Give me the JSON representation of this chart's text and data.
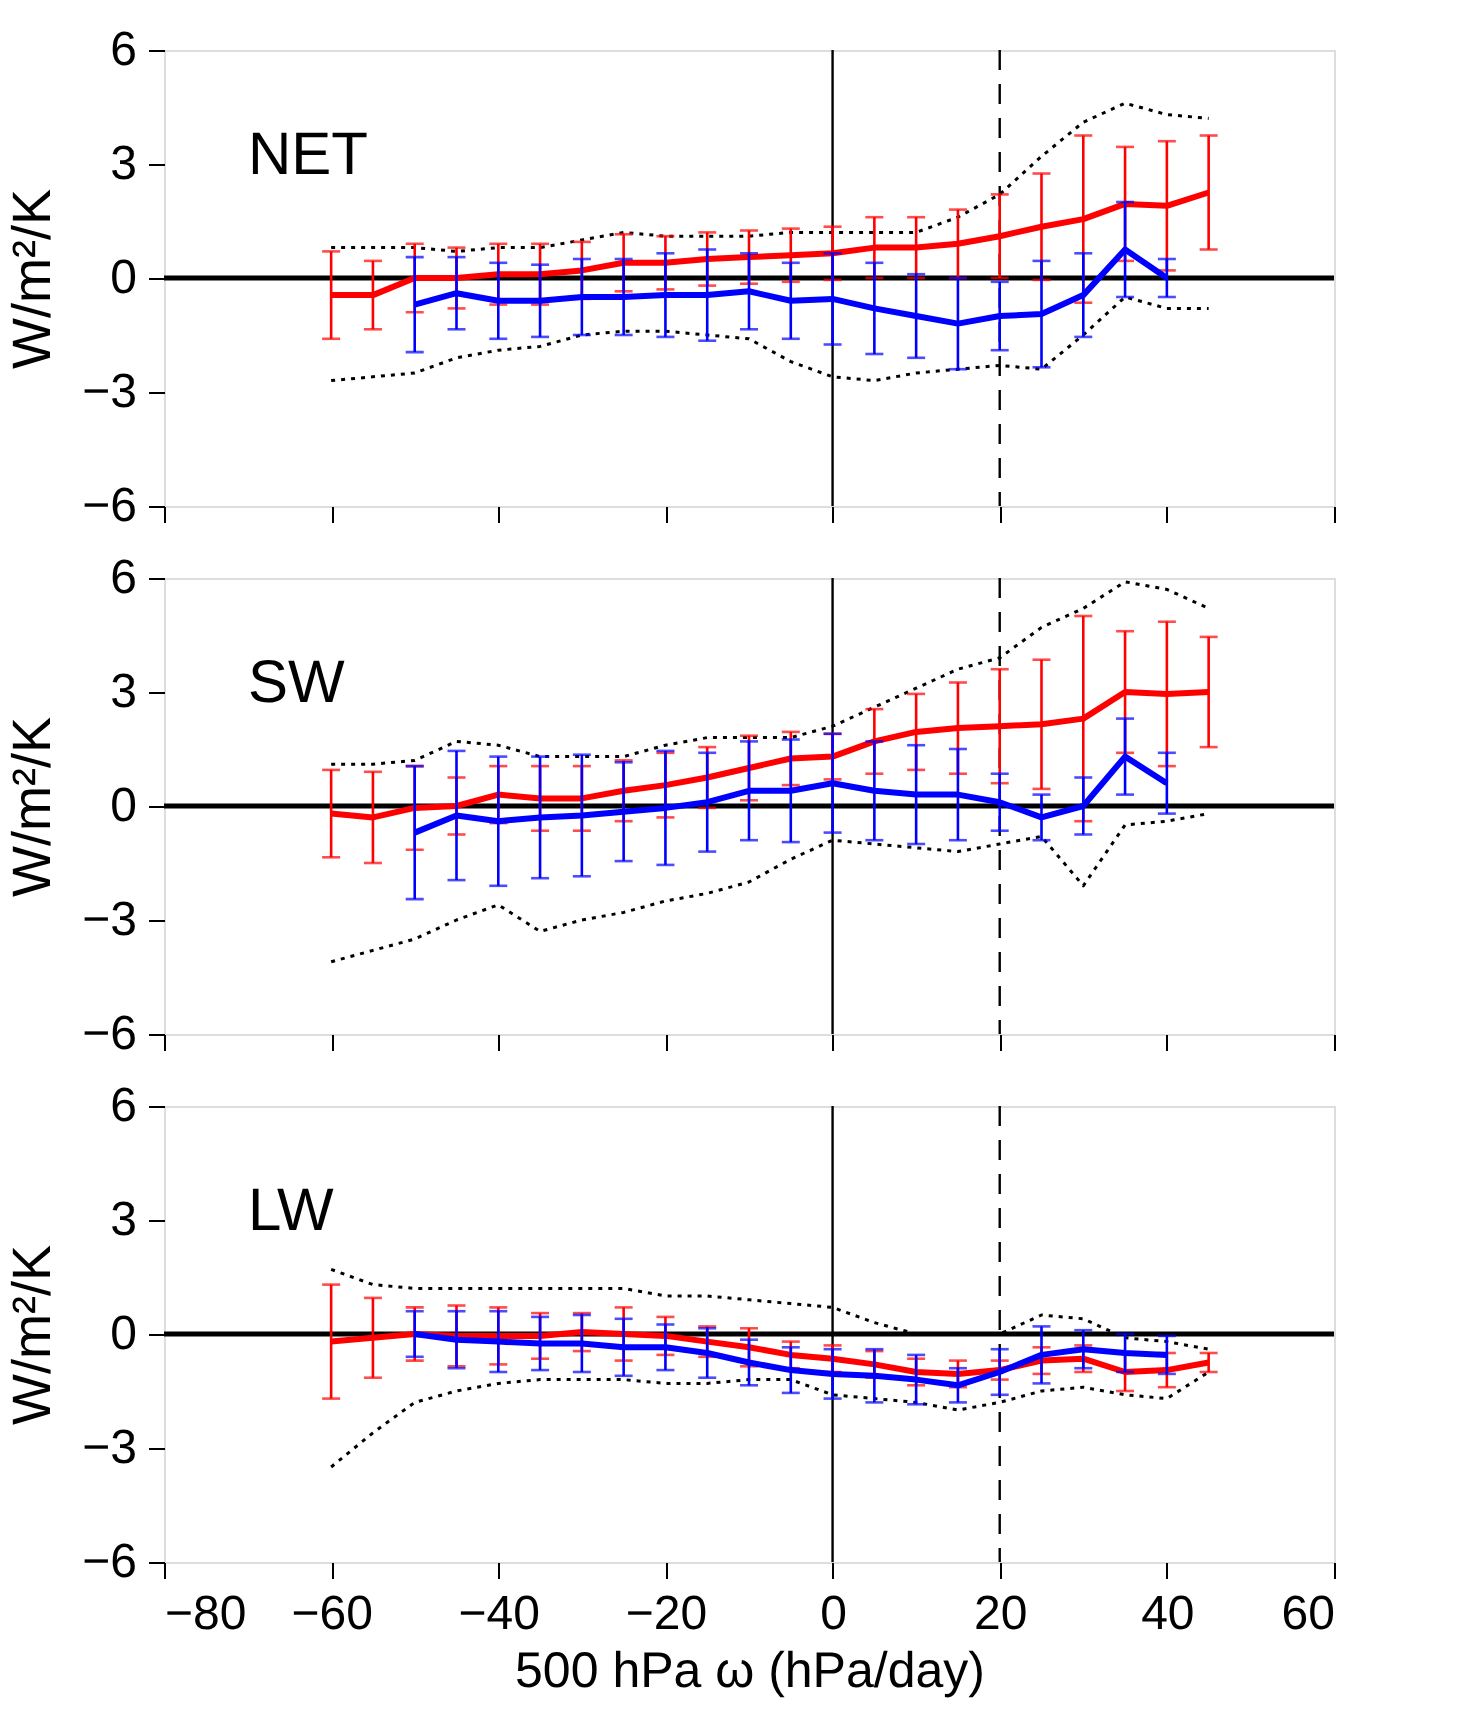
{
  "chart_data": [
    {
      "type": "line",
      "ylabel": "W/m²/K",
      "annotations": [
        "NET"
      ],
      "xlim": [
        -80,
        60
      ],
      "xticks": [
        -80,
        -60,
        -40,
        -20,
        0,
        20,
        40,
        60
      ],
      "ylim": [
        -6,
        6
      ],
      "yticks": [
        -6,
        -3,
        0,
        3,
        6
      ],
      "tick_labels": "y",
      "grid": false,
      "ref_lines": [
        {
          "axis": "y",
          "value": 0,
          "color": "#000000",
          "line_style": "solid"
        },
        {
          "axis": "x",
          "value": 0,
          "color": "#000000",
          "line_style": "solid"
        },
        {
          "axis": "x",
          "value": 20,
          "color": "#000000",
          "line_style": "dashed"
        }
      ],
      "series": [
        {
          "color": "#000000",
          "line_style": "dotted",
          "x": [
            -60,
            -55,
            -50,
            -45,
            -40,
            -35,
            -30,
            -25,
            -20,
            -15,
            -10,
            -5,
            0,
            5,
            10,
            15,
            20,
            25,
            30,
            35,
            40,
            45
          ],
          "values": [
            0.8,
            0.8,
            0.8,
            0.7,
            0.8,
            0.8,
            1.0,
            1.2,
            1.1,
            1.1,
            1.1,
            1.2,
            1.2,
            1.2,
            1.2,
            1.6,
            2.2,
            3.2,
            4.1,
            4.6,
            4.3,
            4.2
          ]
        },
        {
          "color": "#000000",
          "line_style": "dotted",
          "x": [
            -60,
            -55,
            -50,
            -45,
            -40,
            -35,
            -30,
            -25,
            -20,
            -15,
            -10,
            -5,
            0,
            5,
            10,
            15,
            20,
            25,
            30,
            35,
            40,
            45
          ],
          "values": [
            -2.7,
            -2.6,
            -2.5,
            -2.1,
            -1.9,
            -1.8,
            -1.5,
            -1.4,
            -1.4,
            -1.5,
            -1.6,
            -2.2,
            -2.6,
            -2.7,
            -2.5,
            -2.4,
            -2.3,
            -2.4,
            -1.5,
            -0.5,
            -0.8,
            -0.8
          ]
        },
        {
          "color": "#ff0000",
          "line_style": "solid",
          "x": [
            -60,
            -55,
            -50,
            -45,
            -40,
            -35,
            -30,
            -25,
            -20,
            -15,
            -10,
            -5,
            0,
            5,
            10,
            15,
            20,
            25,
            30,
            35,
            40,
            45
          ],
          "values": [
            -0.45,
            -0.45,
            0,
            0,
            0.1,
            0.1,
            0.2,
            0.4,
            0.4,
            0.5,
            0.55,
            0.6,
            0.65,
            0.8,
            0.8,
            0.9,
            1.1,
            1.35,
            1.55,
            1.95,
            1.9,
            2.25
          ],
          "errors": [
            1.15,
            0.9,
            0.9,
            0.8,
            0.8,
            0.8,
            0.75,
            0.75,
            0.7,
            0.7,
            0.7,
            0.7,
            0.7,
            0.8,
            0.8,
            0.9,
            1.1,
            1.4,
            2.2,
            1.5,
            1.7,
            1.5
          ]
        },
        {
          "color": "#0000ff",
          "line_style": "solid",
          "x": [
            -50,
            -45,
            -40,
            -35,
            -30,
            -25,
            -20,
            -15,
            -10,
            -5,
            0,
            5,
            10,
            15,
            20,
            25,
            30,
            35,
            40
          ],
          "values": [
            -0.7,
            -0.4,
            -0.6,
            -0.6,
            -0.5,
            -0.5,
            -0.45,
            -0.45,
            -0.35,
            -0.6,
            -0.55,
            -0.8,
            -1.0,
            -1.2,
            -1.0,
            -0.95,
            -0.45,
            0.75,
            0.0
          ],
          "errors": [
            1.25,
            0.95,
            1.0,
            0.95,
            1.0,
            1.0,
            1.1,
            1.2,
            1.0,
            1.0,
            1.2,
            1.2,
            1.1,
            1.2,
            0.9,
            1.4,
            1.1,
            1.25,
            0.5
          ]
        }
      ]
    },
    {
      "type": "line",
      "ylabel": "W/m²/K",
      "annotations": [
        "SW"
      ],
      "xlim": [
        -80,
        60
      ],
      "xticks": [
        -80,
        -60,
        -40,
        -20,
        0,
        20,
        40,
        60
      ],
      "ylim": [
        -6,
        6
      ],
      "yticks": [
        -6,
        -3,
        0,
        3,
        6
      ],
      "tick_labels": "y",
      "grid": false,
      "ref_lines": [
        {
          "axis": "y",
          "value": 0,
          "color": "#000000",
          "line_style": "solid"
        },
        {
          "axis": "x",
          "value": 0,
          "color": "#000000",
          "line_style": "solid"
        },
        {
          "axis": "x",
          "value": 20,
          "color": "#000000",
          "line_style": "dashed"
        }
      ],
      "series": [
        {
          "color": "#000000",
          "line_style": "dotted",
          "x": [
            -60,
            -55,
            -50,
            -45,
            -40,
            -35,
            -30,
            -25,
            -20,
            -15,
            -10,
            -5,
            0,
            5,
            10,
            15,
            20,
            25,
            30,
            35,
            40,
            45
          ],
          "values": [
            1.1,
            1.1,
            1.2,
            1.7,
            1.6,
            1.3,
            1.3,
            1.3,
            1.6,
            1.8,
            1.8,
            1.8,
            2.1,
            2.6,
            3.1,
            3.6,
            3.9,
            4.7,
            5.2,
            5.9,
            5.7,
            5.2
          ]
        },
        {
          "color": "#000000",
          "line_style": "dotted",
          "x": [
            -60,
            -55,
            -50,
            -45,
            -40,
            -35,
            -30,
            -25,
            -20,
            -15,
            -10,
            -5,
            0,
            5,
            10,
            15,
            20,
            25,
            30,
            35,
            40,
            45
          ],
          "values": [
            -4.1,
            -3.8,
            -3.5,
            -3.0,
            -2.6,
            -3.3,
            -3.0,
            -2.8,
            -2.5,
            -2.3,
            -2.0,
            -1.4,
            -0.9,
            -1.0,
            -1.1,
            -1.2,
            -1.0,
            -0.8,
            -2.1,
            -0.5,
            -0.4,
            -0.2
          ]
        },
        {
          "color": "#ff0000",
          "line_style": "solid",
          "x": [
            -60,
            -55,
            -50,
            -45,
            -40,
            -35,
            -30,
            -25,
            -20,
            -15,
            -10,
            -5,
            0,
            5,
            10,
            15,
            20,
            25,
            30,
            35,
            40,
            45
          ],
          "values": [
            -0.2,
            -0.3,
            -0.05,
            0,
            0.3,
            0.2,
            0.2,
            0.4,
            0.55,
            0.75,
            1.0,
            1.25,
            1.3,
            1.7,
            1.95,
            2.05,
            2.1,
            2.15,
            2.3,
            3.0,
            2.95,
            3.0
          ],
          "errors": [
            1.15,
            1.2,
            1.1,
            0.75,
            0.75,
            0.85,
            0.85,
            0.8,
            0.85,
            0.8,
            0.85,
            0.7,
            0.6,
            0.85,
            1.0,
            1.2,
            1.5,
            1.7,
            2.7,
            1.6,
            1.9,
            1.45
          ]
        },
        {
          "color": "#0000ff",
          "line_style": "solid",
          "x": [
            -50,
            -45,
            -40,
            -35,
            -30,
            -25,
            -20,
            -15,
            -10,
            -5,
            0,
            5,
            10,
            15,
            20,
            25,
            30,
            35,
            40
          ],
          "values": [
            -0.7,
            -0.25,
            -0.4,
            -0.3,
            -0.25,
            -0.15,
            -0.05,
            0.1,
            0.4,
            0.4,
            0.6,
            0.4,
            0.3,
            0.3,
            0.1,
            -0.3,
            0.0,
            1.3,
            0.6
          ],
          "errors": [
            1.75,
            1.7,
            1.7,
            1.6,
            1.6,
            1.3,
            1.5,
            1.3,
            1.3,
            1.35,
            1.3,
            1.3,
            1.3,
            1.2,
            0.75,
            0.6,
            0.75,
            1.0,
            0.8
          ]
        }
      ]
    },
    {
      "type": "line",
      "xlabel": "500 hPa ω (hPa/day)",
      "ylabel": "W/m²/K",
      "annotations": [
        "LW"
      ],
      "xlim": [
        -80,
        60
      ],
      "xticks": [
        -80,
        -60,
        -40,
        -20,
        0,
        20,
        40,
        60
      ],
      "ylim": [
        -6,
        6
      ],
      "yticks": [
        -6,
        -3,
        0,
        3,
        6
      ],
      "grid": false,
      "ref_lines": [
        {
          "axis": "y",
          "value": 0,
          "color": "#000000",
          "line_style": "solid"
        },
        {
          "axis": "x",
          "value": 0,
          "color": "#000000",
          "line_style": "solid"
        },
        {
          "axis": "x",
          "value": 20,
          "color": "#000000",
          "line_style": "dashed"
        }
      ],
      "series": [
        {
          "color": "#000000",
          "line_style": "dotted",
          "x": [
            -60,
            -55,
            -50,
            -45,
            -40,
            -35,
            -30,
            -25,
            -20,
            -15,
            -10,
            -5,
            0,
            5,
            10,
            15,
            20,
            25,
            30,
            35,
            40,
            45
          ],
          "values": [
            1.7,
            1.3,
            1.2,
            1.2,
            1.2,
            1.2,
            1.2,
            1.2,
            1.0,
            1.0,
            0.9,
            0.8,
            0.7,
            0.3,
            0.0,
            0.0,
            0.0,
            0.5,
            0.4,
            -0.1,
            -0.2,
            -0.4
          ]
        },
        {
          "color": "#000000",
          "line_style": "dotted",
          "x": [
            -60,
            -55,
            -50,
            -45,
            -40,
            -35,
            -30,
            -25,
            -20,
            -15,
            -10,
            -5,
            0,
            5,
            10,
            15,
            20,
            25,
            30,
            35,
            40,
            45
          ],
          "values": [
            -3.5,
            -2.6,
            -1.8,
            -1.5,
            -1.3,
            -1.2,
            -1.2,
            -1.2,
            -1.3,
            -1.3,
            -1.2,
            -1.2,
            -1.6,
            -1.7,
            -1.8,
            -2.0,
            -1.8,
            -1.5,
            -1.4,
            -1.6,
            -1.7,
            -1.0
          ]
        },
        {
          "color": "#ff0000",
          "line_style": "solid",
          "x": [
            -60,
            -55,
            -50,
            -45,
            -40,
            -35,
            -30,
            -25,
            -20,
            -15,
            -10,
            -5,
            0,
            5,
            10,
            15,
            20,
            25,
            30,
            35,
            40,
            45
          ],
          "values": [
            -0.2,
            -0.1,
            0,
            -0.05,
            -0.05,
            -0.05,
            0.05,
            0,
            -0.05,
            -0.2,
            -0.35,
            -0.55,
            -0.65,
            -0.8,
            -1.0,
            -1.05,
            -0.95,
            -0.7,
            -0.65,
            -1.0,
            -0.95,
            -0.75
          ],
          "errors": [
            1.5,
            1.05,
            0.7,
            0.8,
            0.75,
            0.6,
            0.5,
            0.7,
            0.5,
            0.4,
            0.5,
            0.35,
            0.35,
            0.35,
            0.35,
            0.35,
            0.25,
            0.35,
            0.35,
            0.5,
            0.45,
            0.25
          ]
        },
        {
          "color": "#0000ff",
          "line_style": "solid",
          "x": [
            -50,
            -45,
            -40,
            -35,
            -30,
            -25,
            -20,
            -15,
            -10,
            -5,
            0,
            5,
            10,
            15,
            20,
            25,
            30,
            35,
            40
          ],
          "values": [
            0,
            -0.15,
            -0.2,
            -0.25,
            -0.25,
            -0.35,
            -0.35,
            -0.5,
            -0.75,
            -0.95,
            -1.05,
            -1.1,
            -1.2,
            -1.35,
            -1.0,
            -0.55,
            -0.4,
            -0.5,
            -0.55
          ],
          "errors": [
            0.6,
            0.75,
            0.8,
            0.7,
            0.75,
            0.75,
            0.6,
            0.65,
            0.6,
            0.6,
            0.65,
            0.7,
            0.65,
            0.45,
            0.6,
            0.75,
            0.5,
            0.5,
            0.5
          ]
        }
      ]
    }
  ]
}
